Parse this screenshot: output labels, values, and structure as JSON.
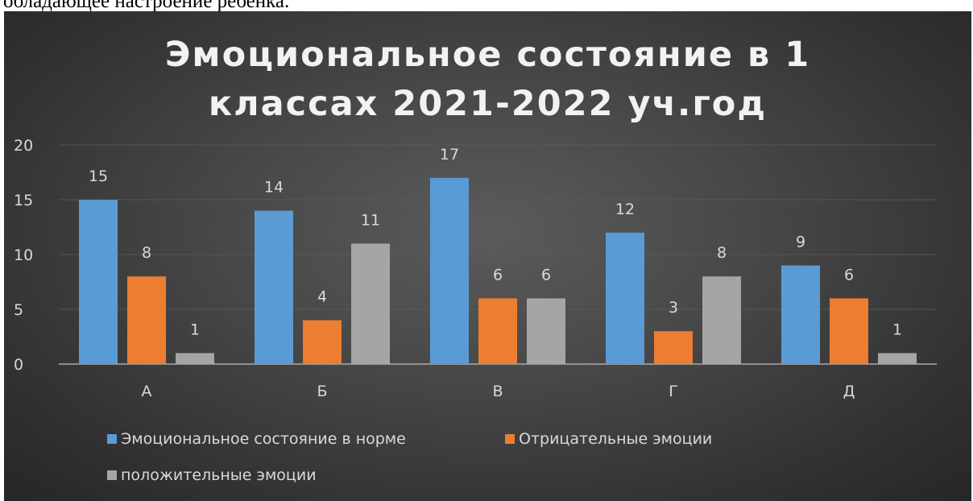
{
  "page": {
    "top_text": "обладающее настроение ребенка."
  },
  "chart_data": {
    "type": "bar",
    "title": "Эмоциональное состояние в 1 классах 2021-2022 уч.год",
    "title_lines": [
      "Эмоциональное состояние в 1",
      "классах 2021-2022 уч.год"
    ],
    "categories": [
      "А",
      "Б",
      "В",
      "Г",
      "Д"
    ],
    "series": [
      {
        "name": "Эмоциональное состояние в норме",
        "values": [
          15,
          14,
          17,
          12,
          9
        ],
        "color": "#5b9bd5"
      },
      {
        "name": "Отрицательные эмоции",
        "values": [
          8,
          4,
          6,
          3,
          6
        ],
        "color": "#ed7d31"
      },
      {
        "name": "положительные эмоции",
        "values": [
          1,
          11,
          6,
          8,
          1
        ],
        "color": "#a5a5a5"
      }
    ],
    "ylim": [
      0,
      20
    ],
    "yticks": [
      0,
      5,
      10,
      15,
      20
    ],
    "grid": true,
    "data_labels": true,
    "legend_position": "bottom",
    "xlabel": "",
    "ylabel": ""
  }
}
